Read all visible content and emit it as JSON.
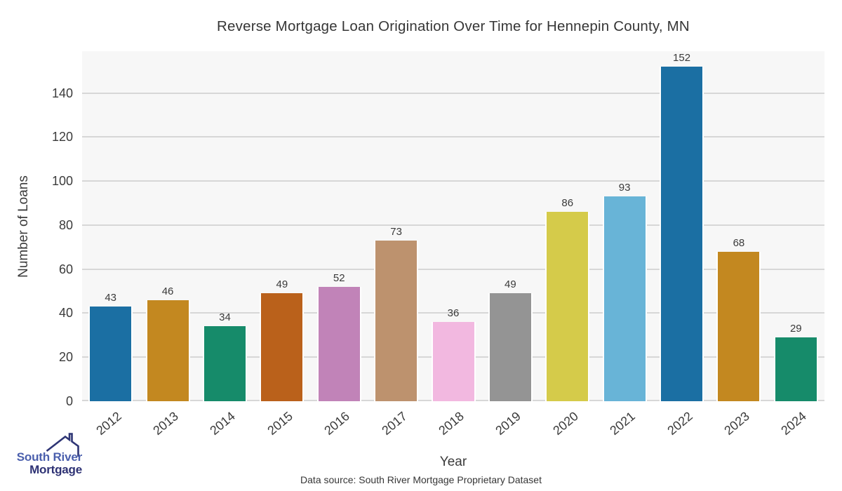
{
  "chart_data": {
    "type": "bar",
    "title": "Reverse Mortgage Loan Origination Over Time for Hennepin County, MN",
    "xlabel": "Year",
    "ylabel": "Number of Loans",
    "categories": [
      "2012",
      "2013",
      "2014",
      "2015",
      "2016",
      "2017",
      "2018",
      "2019",
      "2020",
      "2021",
      "2022",
      "2023",
      "2024"
    ],
    "values": [
      43,
      46,
      34,
      49,
      52,
      73,
      36,
      49,
      86,
      93,
      152,
      68,
      29
    ],
    "bar_colors": [
      "#1b6fa3",
      "#c38820",
      "#168b6a",
      "#ba611b",
      "#c183b8",
      "#bd926e",
      "#f2b8e0",
      "#949494",
      "#d5cb4a",
      "#68b4d7",
      "#1b6fa3",
      "#c38820",
      "#168b6a"
    ],
    "yticks": [
      0,
      20,
      40,
      60,
      80,
      100,
      120,
      140
    ],
    "ylim": [
      0,
      159
    ],
    "grid": "horizontal",
    "legend": false,
    "plot_background": "#f7f7f7",
    "grid_color": "#d7d7d7"
  },
  "footer": {
    "data_source": "Data source: South River Mortgage Proprietary Dataset"
  },
  "logo": {
    "line1": "South River",
    "line2": "Mortgage",
    "line1_color": "#4a5fad",
    "line2_color": "#2e3274",
    "icon_color": "#2e3575"
  }
}
